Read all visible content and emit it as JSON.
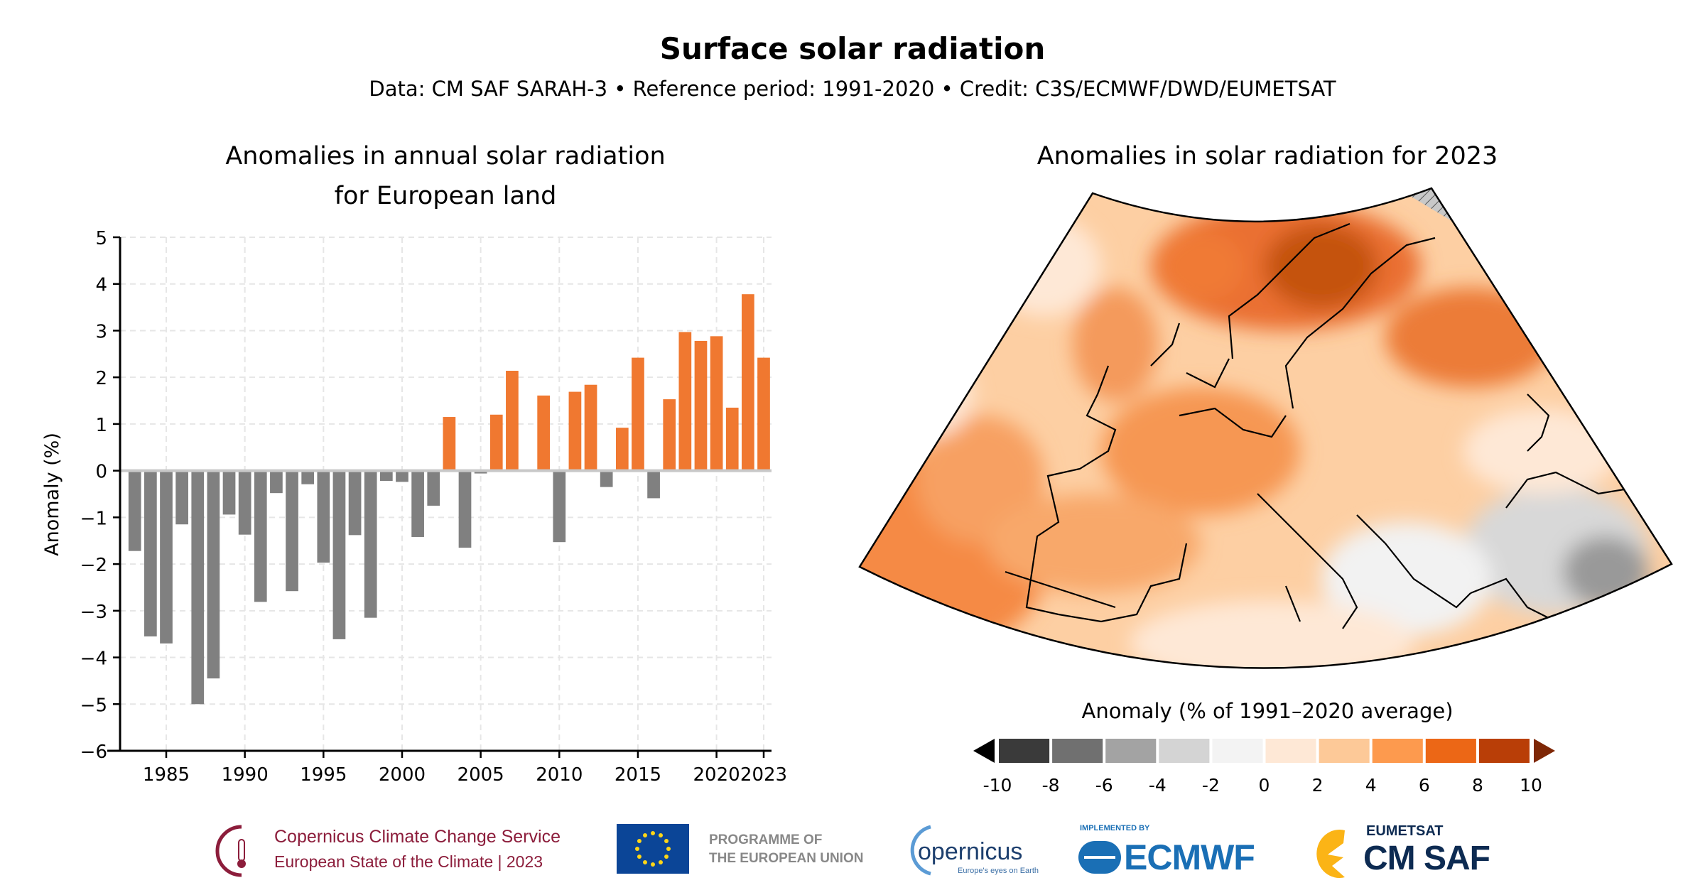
{
  "header": {
    "title": "Surface solar radiation",
    "subtitle": "Data: CM SAF SARAH-3 • Reference period: 1991-2020 • Credit: C3S/ECMWF/DWD/EUMETSAT"
  },
  "chart_data": [
    {
      "type": "bar",
      "title_line1": "Anomalies in annual solar radiation",
      "title_line2": "for European land",
      "xlabel": "",
      "ylabel": "Anomaly (%)",
      "ylim": [
        -6,
        5
      ],
      "yticks": [
        5,
        4,
        3,
        2,
        1,
        0,
        -1,
        -2,
        -3,
        -4,
        -5,
        -6
      ],
      "xticks": [
        1985,
        1990,
        1995,
        2000,
        2005,
        2010,
        2015,
        2020,
        2023
      ],
      "grid": true,
      "colors": {
        "positive": "#f07830",
        "negative": "#808080",
        "zero_line": "#c8c8c8"
      },
      "categories": [
        1983,
        1984,
        1985,
        1986,
        1987,
        1988,
        1989,
        1990,
        1991,
        1992,
        1993,
        1994,
        1995,
        1996,
        1997,
        1998,
        1999,
        2000,
        2001,
        2002,
        2003,
        2004,
        2005,
        2006,
        2007,
        2008,
        2009,
        2010,
        2011,
        2012,
        2013,
        2014,
        2015,
        2016,
        2017,
        2018,
        2019,
        2020,
        2021,
        2022,
        2023
      ],
      "values": [
        -1.72,
        -3.55,
        -3.7,
        -1.15,
        -5.0,
        -4.45,
        -0.94,
        -1.37,
        -2.81,
        -0.48,
        -2.58,
        -0.29,
        -1.97,
        -3.61,
        -1.38,
        -3.15,
        -0.22,
        -0.24,
        -1.42,
        -0.75,
        1.15,
        -1.65,
        -0.06,
        1.2,
        2.14,
        0.0,
        1.61,
        -1.53,
        1.69,
        1.84,
        -0.35,
        0.92,
        2.42,
        -0.59,
        1.53,
        2.97,
        2.78,
        2.88,
        1.35,
        3.78,
        2.42
      ]
    },
    {
      "type": "heatmap",
      "title": "Anomalies in solar radiation for 2023",
      "colorbar_label": "Anomaly (% of 1991–2020 average)",
      "colorbar_ticks": [
        "-10",
        "-8",
        "-6",
        "-4",
        "-2",
        "0",
        "2",
        "4",
        "6",
        "8",
        "10"
      ],
      "colorbar_colors": [
        "#3a3a3a",
        "#707070",
        "#a3a3a3",
        "#d4d4d4",
        "#f3f3f3",
        "#fee8d6",
        "#fdc998",
        "#fd9a4e",
        "#ec6716",
        "#b93e07"
      ],
      "extend_low_color": "#000000",
      "extend_high_color": "#7e2706"
    }
  ],
  "footer": {
    "c3s_line1": "Copernicus Climate Change Service",
    "c3s_line2": "European State of the Climate | 2023",
    "eu_line1": "PROGRAMME OF",
    "eu_line2": "THE EUROPEAN UNION",
    "copernicus": "opernicus",
    "copernicus_tag": "Europe's eyes on Earth",
    "ecmwf_pre": "IMPLEMENTED BY",
    "ecmwf": "ECMWF",
    "eumetsat": "EUMETSAT",
    "cmsaf": "CM SAF"
  }
}
